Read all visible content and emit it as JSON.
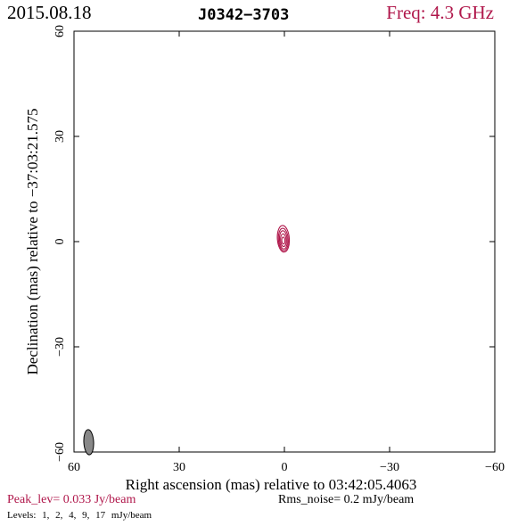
{
  "header": {
    "date": "2015.08.18",
    "source": "J0342−3703",
    "freq": "Freq: 4.3 GHz"
  },
  "chart_data": {
    "type": "contour",
    "xlabel": "Right ascension (mas) relative to 03:42:05.4063",
    "ylabel": "Declination (mas) relative to −37:03:21.575",
    "xlim": [
      60,
      -60
    ],
    "ylim": [
      -60,
      60
    ],
    "xticks": [
      60,
      30,
      0,
      -30,
      -60
    ],
    "yticks": [
      60,
      30,
      0,
      -30,
      -60
    ],
    "xtick_labels": [
      "60",
      "30",
      "0",
      "−30",
      "−60"
    ],
    "ytick_labels": [
      "60",
      "30",
      "0",
      "−30",
      "−60"
    ],
    "contour_color": "#b0174b",
    "contour_levels_mJy": [
      1,
      2,
      4,
      9,
      17
    ],
    "contours": [
      {
        "level": 1,
        "center": [
          0.3,
          0.8
        ],
        "semi_major": 3.8,
        "semi_minor": 1.7,
        "pa_deg": -4
      },
      {
        "level": 2,
        "center": [
          0.3,
          0.6
        ],
        "semi_major": 3.2,
        "semi_minor": 1.4,
        "pa_deg": -4
      },
      {
        "level": 4,
        "center": [
          0.3,
          0.5
        ],
        "semi_major": 2.6,
        "semi_minor": 1.1,
        "pa_deg": -4
      },
      {
        "level": 9,
        "center": [
          0.3,
          0.4
        ],
        "semi_major": 1.8,
        "semi_minor": 0.8,
        "pa_deg": -4
      },
      {
        "level": 17,
        "center": [
          0.3,
          0.3
        ],
        "semi_major": 1.0,
        "semi_minor": 0.45,
        "pa_deg": -4
      }
    ],
    "beam": {
      "center": [
        55.8,
        -57.2
      ],
      "major": 3.6,
      "minor": 1.4,
      "pa_deg": -3,
      "color": "#888888"
    }
  },
  "footer": {
    "peak": "Peak_lev=  0.033 Jy/beam",
    "rms": "Rms_noise=  0.2 mJy/beam",
    "levels": "Levels:  1,  2,  4,  9,  17 mJy/beam"
  }
}
